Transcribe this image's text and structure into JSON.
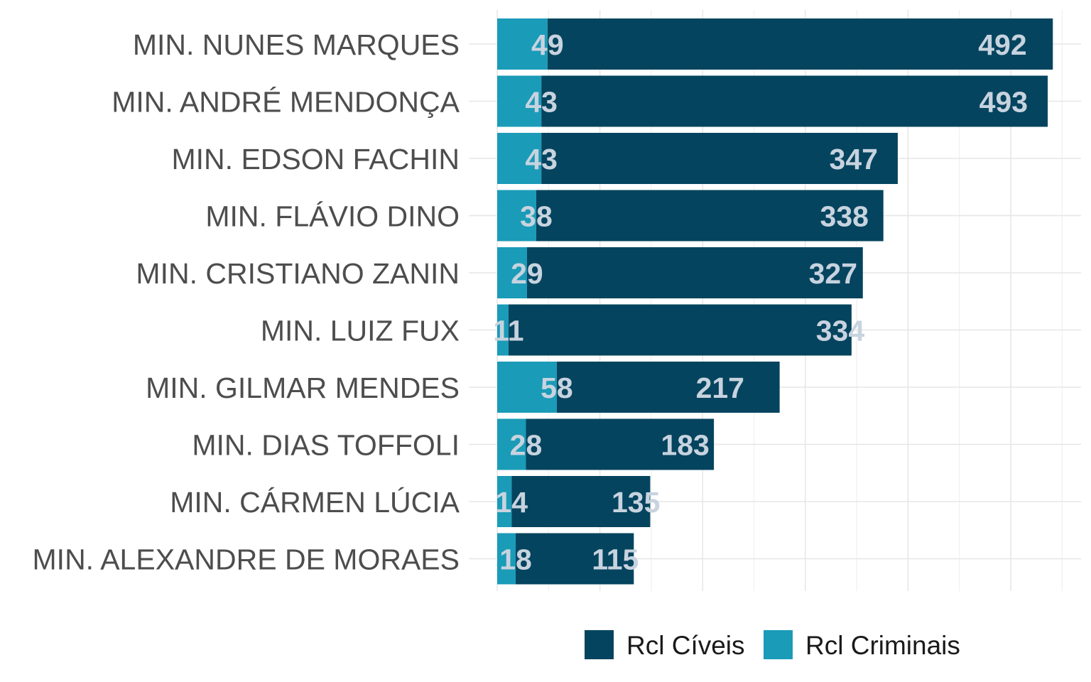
{
  "chart_data": {
    "type": "bar",
    "orientation": "horizontal",
    "stacked": true,
    "title": "",
    "xlabel": "",
    "ylabel": "",
    "xlim": [
      0,
      575
    ],
    "grid": true,
    "legend_position": "bottom",
    "categories": [
      "MIN. NUNES MARQUES",
      "MIN. ANDRÉ MENDONÇA",
      "MIN. EDSON FACHIN",
      "MIN. FLÁVIO DINO",
      "MIN. CRISTIANO ZANIN",
      "MIN. LUIZ FUX",
      "MIN. GILMAR MENDES",
      "MIN. DIAS TOFFOLI",
      "MIN. CÁRMEN LÚCIA",
      "MIN. ALEXANDRE DE MORAES"
    ],
    "series": [
      {
        "name": "Rcl Criminais",
        "color": "#1a9bb8",
        "values": [
          49,
          43,
          43,
          38,
          29,
          11,
          58,
          28,
          14,
          18
        ],
        "labels": [
          "49",
          "43",
          "43",
          "38",
          "29",
          "11",
          "58",
          "28",
          "14",
          "18"
        ]
      },
      {
        "name": "Rcl Cíveis",
        "color": "#05445e",
        "values": [
          492,
          493,
          347,
          338,
          327,
          334,
          217,
          183,
          135,
          115
        ],
        "labels": [
          "492",
          "493",
          "347",
          "338",
          "327",
          "334",
          "217",
          "183",
          "135",
          "115"
        ]
      }
    ],
    "legend": [
      {
        "label": "Rcl Cíveis",
        "color": "#05445e"
      },
      {
        "label": "Rcl Criminais",
        "color": "#1a9bb8"
      }
    ]
  }
}
